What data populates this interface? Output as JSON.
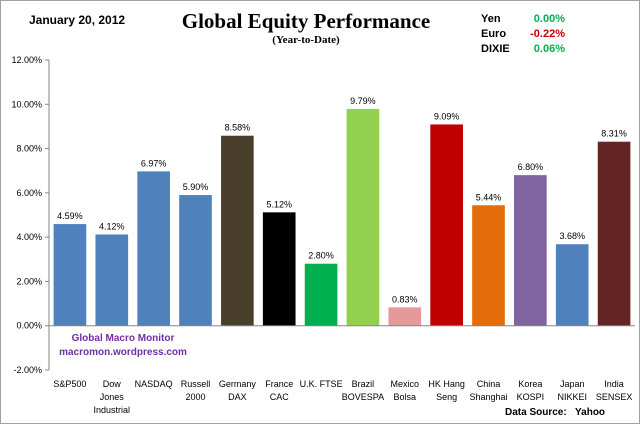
{
  "header": {
    "date": "January 20, 2012",
    "data_source_label": "Data Source:",
    "data_source": "Yahoo"
  },
  "currencies": [
    {
      "name": "Yen",
      "value": "0.00%",
      "color": "#00b050"
    },
    {
      "name": "Euro",
      "value": "-0.22%",
      "color": "#c00000"
    },
    {
      "name": "DIXIE",
      "value": "0.06%",
      "color": "#00b050"
    }
  ],
  "watermark": {
    "line1": "Global Macro Monitor",
    "line2": "macromon.wordpress.com"
  },
  "chart_data": {
    "type": "bar",
    "title": "Global Equity Performance",
    "subtitle": "(Year-to-Date)",
    "xlabel": "",
    "ylabel": "",
    "ylim": [
      -2,
      12
    ],
    "yticks": [
      -2,
      0,
      2,
      4,
      6,
      8,
      10,
      12
    ],
    "ytick_labels": [
      "-2.00%",
      "0.00%",
      "2.00%",
      "4.00%",
      "6.00%",
      "8.00%",
      "10.00%",
      "12.00%"
    ],
    "categories": [
      [
        "S&P500"
      ],
      [
        "Dow",
        "Jones",
        "Industrial"
      ],
      [
        "NASDAQ"
      ],
      [
        "Russell",
        "2000"
      ],
      [
        "Germany",
        "DAX"
      ],
      [
        "France",
        "CAC"
      ],
      [
        "U.K. FTSE"
      ],
      [
        "Brazil",
        "BOVESPA"
      ],
      [
        "Mexico",
        "Bolsa"
      ],
      [
        "HK Hang",
        "Seng"
      ],
      [
        "China",
        "Shanghai"
      ],
      [
        "Korea",
        "KOSPI"
      ],
      [
        "Japan",
        "NIKKEI"
      ],
      [
        "India",
        "SENSEX"
      ]
    ],
    "values": [
      4.59,
      4.12,
      6.97,
      5.9,
      8.58,
      5.12,
      2.8,
      9.79,
      0.83,
      9.09,
      5.44,
      6.8,
      3.68,
      8.31
    ],
    "data_labels": [
      "4.59%",
      "4.12%",
      "6.97%",
      "5.90%",
      "8.58%",
      "5.12%",
      "2.80%",
      "9.79%",
      "0.83%",
      "9.09%",
      "5.44%",
      "6.80%",
      "3.68%",
      "8.31%"
    ],
    "colors": [
      "#4f81bd",
      "#4f81bd",
      "#4f81bd",
      "#4f81bd",
      "#4a3f2a",
      "#000000",
      "#00b050",
      "#92d050",
      "#e6999a",
      "#c00000",
      "#e46c0a",
      "#8064a2",
      "#4f81bd",
      "#632523"
    ],
    "grid": false,
    "legend": "none"
  }
}
